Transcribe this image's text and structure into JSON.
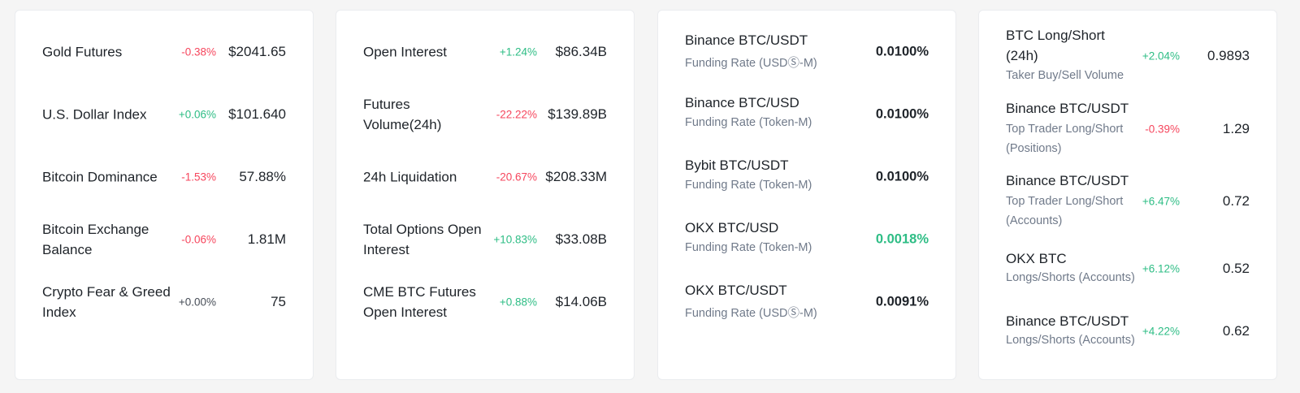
{
  "markets": [
    {
      "label": "Gold Futures",
      "change": "-0.38%",
      "dir": "neg",
      "value": "$2041.65"
    },
    {
      "label": "U.S. Dollar Index",
      "change": "+0.06%",
      "dir": "pos",
      "value": "$101.640"
    },
    {
      "label": "Bitcoin Dominance",
      "change": "-1.53%",
      "dir": "neg",
      "value": "57.88%"
    },
    {
      "label": "Bitcoin Exchange Balance",
      "change": "-0.06%",
      "dir": "neg",
      "value": "1.81M"
    },
    {
      "label": "Crypto Fear & Greed Index",
      "change": "+0.00%",
      "dir": "neu",
      "value": "75"
    }
  ],
  "derivatives": [
    {
      "label": "Open Interest",
      "change": "+1.24%",
      "dir": "pos",
      "value": "$86.34B"
    },
    {
      "label": "Futures Volume(24h)",
      "change": "-22.22%",
      "dir": "neg",
      "value": "$139.89B"
    },
    {
      "label": "24h Liquidation",
      "change": "-20.67%",
      "dir": "neg",
      "value": "$208.33M"
    },
    {
      "label": "Total Options Open Interest",
      "change": "+10.83%",
      "dir": "pos",
      "value": "$33.08B"
    },
    {
      "label": "CME BTC Futures Open Interest",
      "change": "+0.88%",
      "dir": "pos",
      "value": "$14.06B"
    }
  ],
  "funding": [
    {
      "title": "Binance BTC/USDT",
      "sub": "Funding Rate (USDⓈ-M)",
      "value": "0.0100%"
    },
    {
      "title": "Binance BTC/USD",
      "sub": "Funding Rate (Token-M)",
      "value": "0.0100%"
    },
    {
      "title": "Bybit BTC/USDT",
      "sub": "Funding Rate (Token-M)",
      "value": "0.0100%"
    },
    {
      "title": "OKX BTC/USD",
      "sub": "Funding Rate (Token-M)",
      "value": "0.0018%"
    },
    {
      "title": "OKX BTC/USDT",
      "sub": "Funding Rate (USDⓈ-M)",
      "value": "0.0091%"
    }
  ],
  "long_short": [
    {
      "title": "BTC Long/Short (24h)",
      "sub": "Taker Buy/Sell Volume",
      "change": "+2.04%",
      "dir": "pos",
      "value": "0.9893"
    },
    {
      "title": "Binance BTC/USDT",
      "sub": "Top Trader Long/Short (Positions)",
      "change": "-0.39%",
      "dir": "neg",
      "value": "1.29"
    },
    {
      "title": "Binance BTC/USDT",
      "sub": "Top Trader Long/Short (Accounts)",
      "change": "+6.47%",
      "dir": "pos",
      "value": "0.72"
    },
    {
      "title": "OKX BTC",
      "sub": "Longs/Shorts (Accounts)",
      "change": "+6.12%",
      "dir": "pos",
      "value": "0.52"
    },
    {
      "title": "Binance BTC/USDT",
      "sub": "Longs/Shorts (Accounts)",
      "change": "+4.22%",
      "dir": "pos",
      "value": "0.62"
    }
  ],
  "colors": {
    "negative": "#f6465d",
    "positive": "#2ebd85",
    "neutral": "#474d57",
    "text": "#1e2329",
    "muted": "#707a8a"
  }
}
